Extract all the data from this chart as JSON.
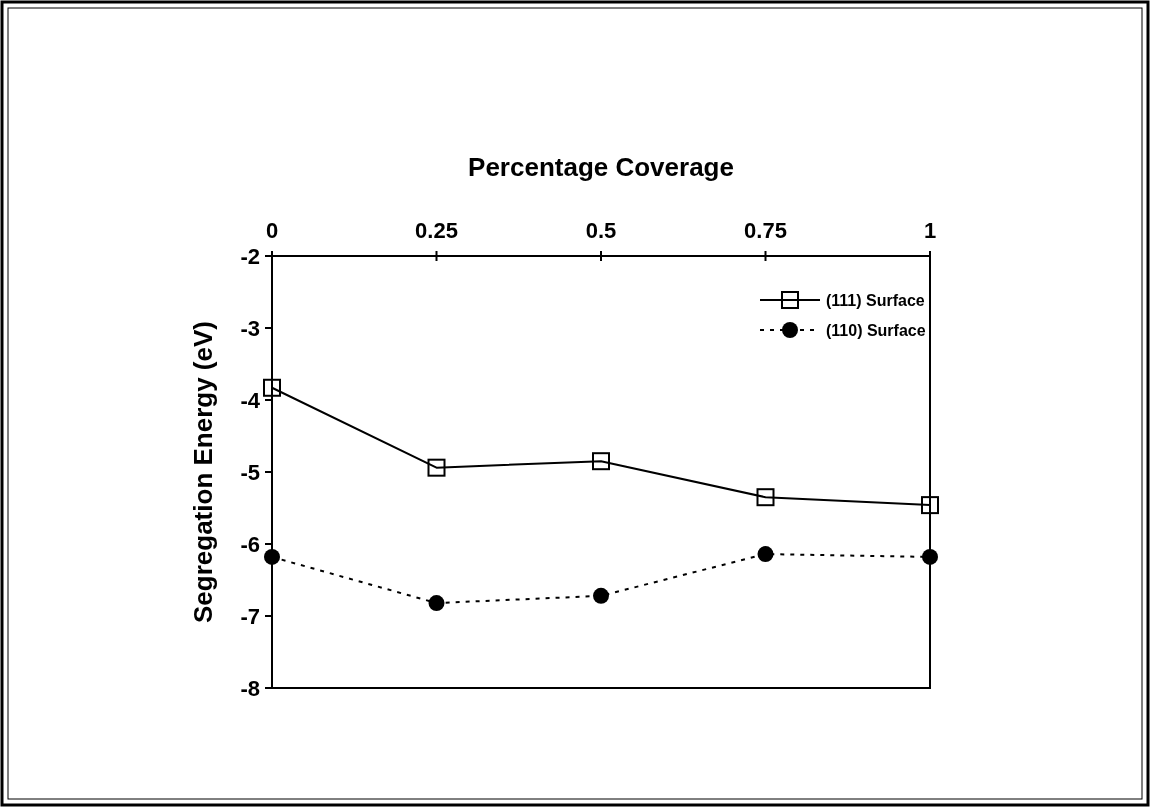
{
  "chart_data": {
    "type": "line",
    "xlabel": "Percentage Coverage",
    "ylabel": "Segregation Energy (eV)",
    "x": [
      0,
      0.25,
      0.5,
      0.75,
      1
    ],
    "xlim": [
      0,
      1
    ],
    "xticks": [
      0,
      0.25,
      0.5,
      0.75,
      1
    ],
    "ylim": [
      -8,
      -2
    ],
    "yticks": [
      -2,
      -3,
      -4,
      -5,
      -6,
      -7,
      -8
    ],
    "legend": "top right",
    "grid": false,
    "series": [
      {
        "name": "(111) Surface",
        "color": "#000000",
        "marker": "square",
        "line_style": "solid",
        "values": [
          -3.83,
          -4.94,
          -4.85,
          -5.35,
          -5.46
        ]
      },
      {
        "name": "(110) Surface",
        "color": "#000000",
        "marker": "circle",
        "line_style": "dotted",
        "values": [
          -6.18,
          -6.82,
          -6.72,
          -6.14,
          -6.18
        ]
      }
    ]
  }
}
